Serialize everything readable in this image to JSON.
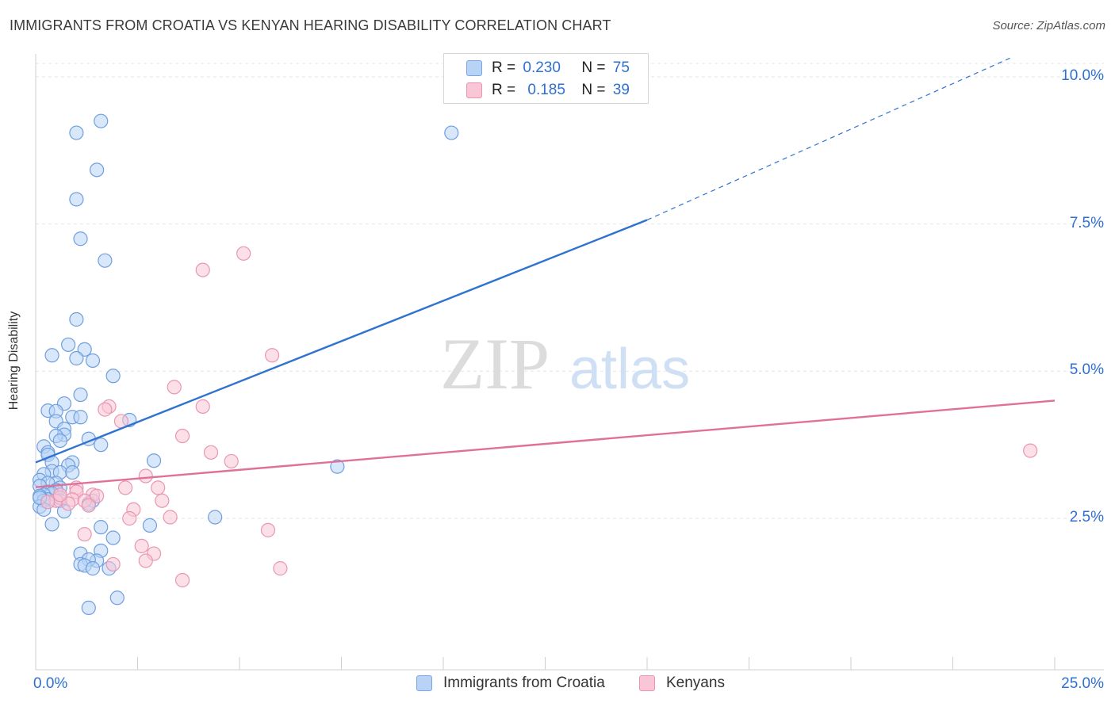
{
  "header": {
    "title": "IMMIGRANTS FROM CROATIA VS KENYAN HEARING DISABILITY CORRELATION CHART",
    "source": "Source: ZipAtlas.com"
  },
  "watermark": {
    "zip": "ZIP",
    "atlas": "atlas"
  },
  "legend": {
    "rows": [
      {
        "r_label": "R =",
        "r_value": "0.230",
        "n_label": "N =",
        "n_value": "75"
      },
      {
        "r_label": "R =",
        "r_value": "0.185",
        "n_label": "N =",
        "n_value": "39"
      }
    ]
  },
  "colors": {
    "blue_fill": "#b8d3f5",
    "blue_stroke": "#6f9fde",
    "blue_line": "#2f72d0",
    "pink_fill": "#f9c6d6",
    "pink_stroke": "#e996b2",
    "pink_line": "#e0709a",
    "grid": "#e6e6e6",
    "tick_text": "#2f6fcf"
  },
  "chart_data": {
    "type": "scatter",
    "title": "IMMIGRANTS FROM CROATIA VS KENYAN HEARING DISABILITY CORRELATION CHART",
    "xlabel": "",
    "ylabel": "Hearing Disability",
    "xlim": [
      0,
      25
    ],
    "ylim": [
      0,
      10.5
    ],
    "x_tick_labels": [
      "0.0%",
      "25.0%"
    ],
    "y_ticks": [
      2.5,
      5.0,
      7.5,
      10.0
    ],
    "y_tick_labels": [
      "2.5%",
      "5.0%",
      "7.5%",
      "10.0%"
    ],
    "grid": "horizontal-dashed",
    "legend_position": "bottom",
    "series": [
      {
        "name": "Immigrants from Croatia",
        "r": 0.23,
        "n": 75,
        "trend": {
          "x0": 0.0,
          "y0": 3.45,
          "x1": 15.0,
          "y1": 7.57,
          "dashed_to_x": 25.0,
          "dashed_to_y": 10.3
        },
        "points": [
          [
            1.6,
            9.25
          ],
          [
            1.0,
            9.05
          ],
          [
            10.2,
            9.05
          ],
          [
            1.5,
            8.42
          ],
          [
            1.0,
            7.92
          ],
          [
            1.1,
            7.25
          ],
          [
            1.7,
            6.88
          ],
          [
            1.0,
            5.88
          ],
          [
            0.8,
            5.45
          ],
          [
            1.2,
            5.37
          ],
          [
            0.4,
            5.27
          ],
          [
            1.0,
            5.22
          ],
          [
            1.4,
            5.18
          ],
          [
            1.9,
            4.92
          ],
          [
            1.1,
            4.6
          ],
          [
            0.7,
            4.45
          ],
          [
            0.3,
            4.33
          ],
          [
            0.5,
            4.32
          ],
          [
            0.9,
            4.22
          ],
          [
            1.1,
            4.22
          ],
          [
            2.3,
            4.17
          ],
          [
            0.5,
            4.15
          ],
          [
            0.7,
            4.02
          ],
          [
            0.7,
            3.92
          ],
          [
            0.5,
            3.9
          ],
          [
            0.6,
            3.82
          ],
          [
            1.3,
            3.85
          ],
          [
            1.6,
            3.75
          ],
          [
            0.2,
            3.72
          ],
          [
            0.3,
            3.62
          ],
          [
            0.3,
            3.58
          ],
          [
            2.9,
            3.48
          ],
          [
            0.4,
            3.45
          ],
          [
            0.9,
            3.45
          ],
          [
            0.8,
            3.4
          ],
          [
            7.4,
            3.38
          ],
          [
            0.4,
            3.3
          ],
          [
            0.6,
            3.28
          ],
          [
            0.9,
            3.28
          ],
          [
            0.2,
            3.25
          ],
          [
            0.1,
            3.15
          ],
          [
            0.5,
            3.1
          ],
          [
            0.3,
            3.1
          ],
          [
            0.1,
            3.05
          ],
          [
            0.6,
            3.02
          ],
          [
            0.5,
            2.98
          ],
          [
            0.3,
            2.95
          ],
          [
            0.4,
            2.92
          ],
          [
            0.2,
            2.9
          ],
          [
            0.1,
            2.88
          ],
          [
            0.6,
            2.85
          ],
          [
            0.3,
            2.82
          ],
          [
            0.2,
            2.8
          ],
          [
            0.6,
            2.8
          ],
          [
            1.4,
            2.8
          ],
          [
            1.3,
            2.75
          ],
          [
            0.1,
            2.7
          ],
          [
            0.2,
            2.65
          ],
          [
            0.7,
            2.62
          ],
          [
            4.4,
            2.52
          ],
          [
            0.4,
            2.4
          ],
          [
            2.8,
            2.38
          ],
          [
            1.6,
            2.35
          ],
          [
            1.9,
            2.17
          ],
          [
            1.1,
            1.9
          ],
          [
            1.6,
            1.95
          ],
          [
            1.5,
            1.78
          ],
          [
            1.3,
            1.8
          ],
          [
            1.1,
            1.72
          ],
          [
            1.2,
            1.7
          ],
          [
            1.4,
            1.65
          ],
          [
            1.8,
            1.65
          ],
          [
            1.3,
            0.98
          ],
          [
            2.0,
            1.15
          ],
          [
            0.1,
            2.85
          ]
        ]
      },
      {
        "name": "Kenyans",
        "r": 0.185,
        "n": 39,
        "trend": {
          "x0": 0.0,
          "y0": 3.03,
          "x1": 25.0,
          "y1": 4.5
        },
        "points": [
          [
            5.1,
            7.0
          ],
          [
            4.1,
            6.72
          ],
          [
            5.8,
            5.27
          ],
          [
            3.4,
            4.73
          ],
          [
            1.8,
            4.4
          ],
          [
            1.7,
            4.35
          ],
          [
            4.1,
            4.4
          ],
          [
            2.1,
            4.15
          ],
          [
            3.6,
            3.9
          ],
          [
            4.3,
            3.62
          ],
          [
            4.8,
            3.47
          ],
          [
            24.4,
            3.65
          ],
          [
            2.7,
            3.22
          ],
          [
            1.0,
            3.02
          ],
          [
            2.2,
            3.02
          ],
          [
            3.0,
            3.02
          ],
          [
            1.0,
            2.95
          ],
          [
            1.4,
            2.9
          ],
          [
            1.5,
            2.88
          ],
          [
            0.6,
            2.85
          ],
          [
            0.9,
            2.82
          ],
          [
            1.2,
            2.8
          ],
          [
            3.1,
            2.8
          ],
          [
            0.5,
            2.8
          ],
          [
            0.3,
            2.78
          ],
          [
            1.3,
            2.72
          ],
          [
            0.8,
            2.75
          ],
          [
            2.4,
            2.65
          ],
          [
            3.3,
            2.52
          ],
          [
            2.3,
            2.5
          ],
          [
            5.7,
            2.3
          ],
          [
            1.2,
            2.23
          ],
          [
            2.6,
            2.03
          ],
          [
            2.9,
            1.9
          ],
          [
            2.7,
            1.78
          ],
          [
            1.9,
            1.72
          ],
          [
            6.0,
            1.65
          ],
          [
            3.6,
            1.45
          ],
          [
            0.6,
            2.9
          ]
        ]
      }
    ]
  }
}
